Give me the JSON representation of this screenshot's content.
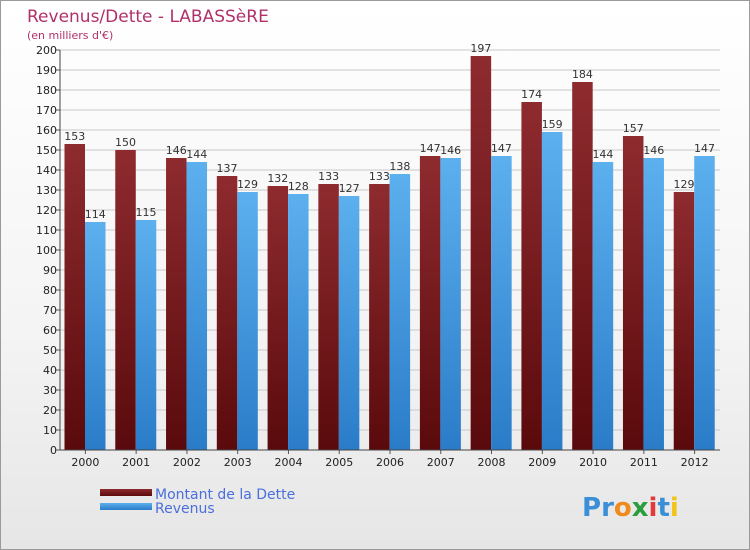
{
  "chart_data": {
    "type": "bar",
    "title": "Revenus/Dette - LABASSèRE",
    "subtitle": "(en milliers d'€)",
    "categories": [
      "2000",
      "2001",
      "2002",
      "2003",
      "2004",
      "2005",
      "2006",
      "2007",
      "2008",
      "2009",
      "2010",
      "2011",
      "2012"
    ],
    "series": [
      {
        "name": "Montant de la Dette",
        "color": "#7a1a1e",
        "values": [
          153,
          150,
          146,
          137,
          132,
          133,
          133,
          147,
          197,
          174,
          184,
          157,
          129
        ]
      },
      {
        "name": "Revenus",
        "color": "#4a9fe6",
        "values": [
          114,
          115,
          144,
          129,
          128,
          127,
          138,
          146,
          147,
          159,
          144,
          146,
          147
        ]
      }
    ],
    "ylim": [
      0,
      200
    ],
    "ytick_step": 10,
    "grid": true,
    "legend_position": "bottom-left"
  },
  "logo": {
    "text": "Proxiti",
    "letters": [
      "P",
      "r",
      "o",
      "x",
      "i",
      "t",
      "i"
    ],
    "colors": [
      "#3a8fd6",
      "#3a8fd6",
      "#f08a1c",
      "#2a9d3c",
      "#e23a3a",
      "#3a8fd6",
      "#f2c31a"
    ]
  }
}
